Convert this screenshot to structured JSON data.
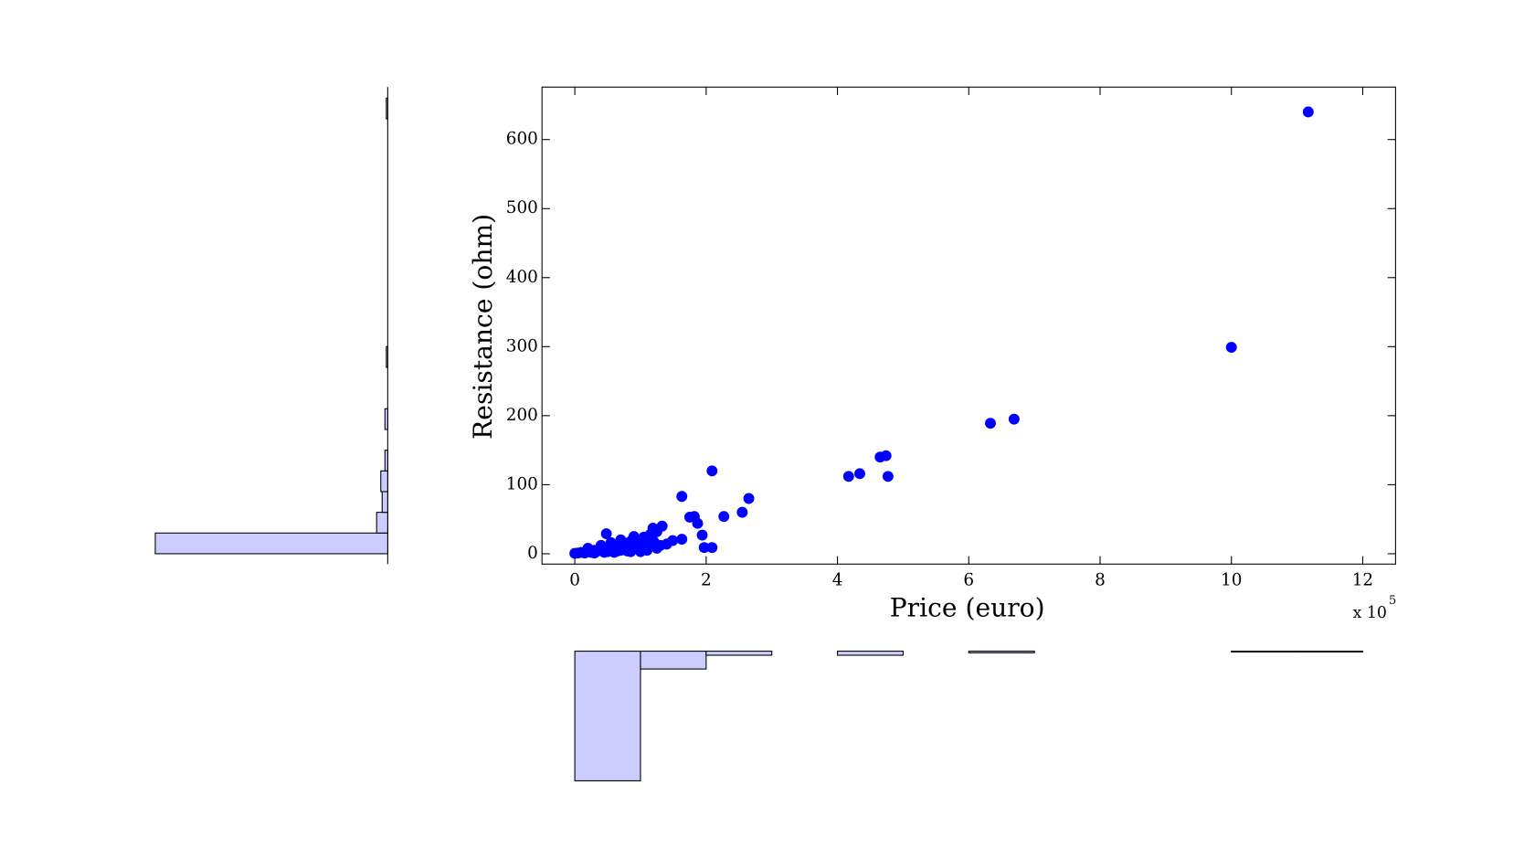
{
  "chart_data": [
    {
      "type": "scatter",
      "xlabel": "Price (euro)",
      "ylabel": "Resistance (ohm)",
      "x_multiplier": "x 10",
      "x_multiplier_exp": "5",
      "color": "#0000ff",
      "x": [
        0,
        0.05,
        0.1,
        0.15,
        0.2,
        0.25,
        0.3,
        0.35,
        0.4,
        0.45,
        0.5,
        0.55,
        0.6,
        0.65,
        0.7,
        0.75,
        0.8,
        0.85,
        0.9,
        0.95,
        1.0,
        1.05,
        1.1,
        1.15,
        1.2,
        1.25,
        1.3,
        0.3,
        0.45,
        0.6,
        0.8,
        1.0,
        0.7,
        0.9,
        1.1,
        1.4,
        0.2,
        0.55,
        0.85,
        1.25,
        0.4,
        0.65,
        0.48,
        1.19,
        1.33,
        1.49,
        1.63,
        1.63,
        1.75,
        1.82,
        1.87,
        1.94,
        1.97,
        2.09,
        2.09,
        2.27,
        2.55,
        2.65,
        4.17,
        4.34,
        4.65,
        4.74,
        4.77,
        6.33,
        6.69,
        10.0,
        11.17
      ],
      "y": [
        0.5,
        1,
        2,
        1,
        3,
        2,
        5,
        4,
        8,
        6,
        3,
        10,
        7,
        12,
        5,
        15,
        9,
        18,
        11,
        20,
        8,
        24,
        14,
        28,
        18,
        32,
        12,
        1,
        2,
        2,
        4,
        3,
        20,
        25,
        5,
        14,
        8,
        16,
        3,
        8,
        12,
        4,
        29,
        37,
        40,
        19,
        21,
        83,
        53,
        54,
        44,
        27,
        9,
        9,
        120,
        54,
        60,
        80,
        112,
        116,
        140,
        142,
        112,
        189,
        195,
        299,
        640
      ],
      "xlim": [
        -0.5,
        12.5
      ],
      "ylim": [
        -15,
        676
      ],
      "xticks": [
        0,
        2,
        4,
        6,
        8,
        10,
        12
      ],
      "yticks": [
        0,
        100,
        200,
        300,
        400,
        500,
        600
      ]
    },
    {
      "type": "histogram",
      "orientation": "vertical",
      "color": "#ccccff",
      "bins": [
        0,
        1,
        2,
        3,
        4,
        5,
        6,
        7,
        8,
        9,
        10,
        11,
        12
      ],
      "values": [
        160,
        22,
        5,
        0,
        5,
        0,
        2,
        0,
        0,
        0,
        1,
        1
      ]
    },
    {
      "type": "histogram",
      "orientation": "horizontal",
      "color": "#ccccff",
      "bins": [
        0,
        30,
        60,
        90,
        120,
        150,
        180,
        210,
        240,
        270,
        300,
        330,
        360,
        390,
        420,
        450,
        480,
        510,
        540,
        570,
        600,
        630,
        660
      ],
      "values": [
        168,
        8,
        4,
        5,
        2,
        0,
        2,
        0,
        0,
        1,
        0,
        0,
        0,
        0,
        0,
        0,
        0,
        0,
        0,
        0,
        0,
        1
      ]
    }
  ]
}
